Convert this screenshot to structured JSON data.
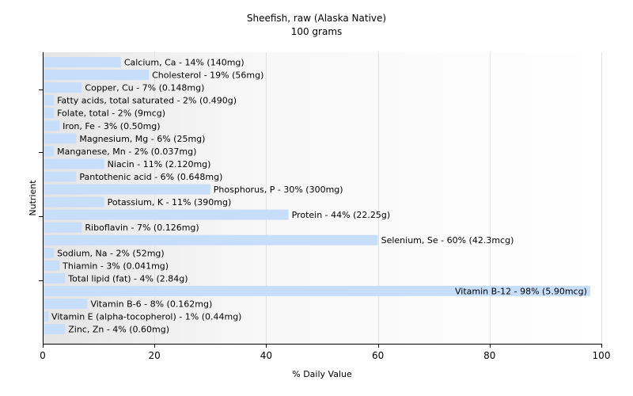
{
  "chart_data": {
    "type": "bar",
    "orientation": "horizontal",
    "title": "Sheefish, raw (Alaska Native)",
    "subtitle": "100 grams",
    "xlabel": "% Daily Value",
    "ylabel": "Nutrient",
    "xlim": [
      0,
      100
    ],
    "xticks": [
      0,
      20,
      40,
      60,
      80,
      100
    ],
    "grid": true,
    "bar_color": "#c6defa",
    "categories": [
      "Calcium, Ca",
      "Cholesterol",
      "Copper, Cu",
      "Fatty acids, total saturated",
      "Folate, total",
      "Iron, Fe",
      "Magnesium, Mg",
      "Manganese, Mn",
      "Niacin",
      "Pantothenic acid",
      "Phosphorus, P",
      "Potassium, K",
      "Protein",
      "Riboflavin",
      "Selenium, Se",
      "Sodium, Na",
      "Thiamin",
      "Total lipid (fat)",
      "Vitamin B-12",
      "Vitamin B-6",
      "Vitamin E (alpha-tocopherol)",
      "Zinc, Zn"
    ],
    "values": [
      14,
      19,
      7,
      2,
      2,
      3,
      6,
      2,
      11,
      6,
      30,
      11,
      44,
      7,
      60,
      2,
      3,
      4,
      98,
      8,
      1,
      4
    ],
    "labels": [
      "Calcium, Ca - 14% (140mg)",
      "Cholesterol - 19% (56mg)",
      "Copper, Cu - 7% (0.148mg)",
      "Fatty acids, total saturated - 2% (0.490g)",
      "Folate, total - 2% (9mcg)",
      "Iron, Fe - 3% (0.50mg)",
      "Magnesium, Mg - 6% (25mg)",
      "Manganese, Mn - 2% (0.037mg)",
      "Niacin - 11% (2.120mg)",
      "Pantothenic acid - 6% (0.648mg)",
      "Phosphorus, P - 30% (300mg)",
      "Potassium, K - 11% (390mg)",
      "Protein - 44% (22.25g)",
      "Riboflavin - 7% (0.126mg)",
      "Selenium, Se - 60% (42.3mcg)",
      "Sodium, Na - 2% (52mg)",
      "Thiamin - 3% (0.041mg)",
      "Total lipid (fat) - 4% (2.84g)",
      "Vitamin B-12 - 98% (5.90mcg)",
      "Vitamin B-6 - 8% (0.162mg)",
      "Vitamin E (alpha-tocopherol) - 1% (0.44mg)",
      "Zinc, Zn - 4% (0.60mg)"
    ]
  }
}
